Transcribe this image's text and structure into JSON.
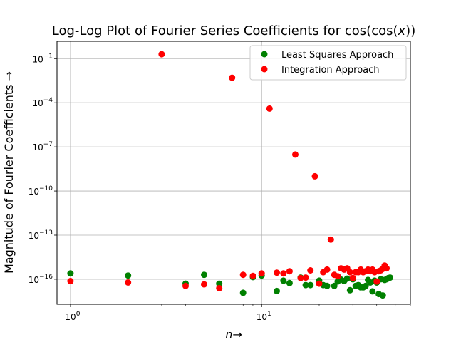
{
  "chart_data": {
    "type": "scatter",
    "title": "Log-Log Plot of Fourier Series Coefficients for cos(cos(x))",
    "xlabel": "n→",
    "ylabel": "Magnitude of Fourier Coefficients →",
    "xscale": "log",
    "yscale": "log",
    "xlim": [
      0.85,
      60
    ],
    "ylim": [
      2e-18,
      1.5
    ],
    "xticks": [
      {
        "value": 1,
        "label": "10^0"
      },
      {
        "value": 10,
        "label": "10^1"
      }
    ],
    "yticks": [
      {
        "value": 0.1,
        "label": "10^-1"
      },
      {
        "value": 0.0001,
        "label": "10^-4"
      },
      {
        "value": 1e-07,
        "label": "10^-7"
      },
      {
        "value": 1e-10,
        "label": "10^-10"
      },
      {
        "value": 1e-13,
        "label": "10^-13"
      },
      {
        "value": 1e-16,
        "label": "10^-16"
      }
    ],
    "grid": true,
    "legend_position": "top-right",
    "series": [
      {
        "name": "Least Squares Approach",
        "color": "#008000",
        "points": [
          [
            1,
            2.5e-16
          ],
          [
            2,
            1.8e-16
          ],
          [
            4,
            5e-17
          ],
          [
            5,
            2e-16
          ],
          [
            6,
            5e-17
          ],
          [
            8,
            1.2e-17
          ],
          [
            9,
            1.4e-16
          ],
          [
            10,
            1.8e-16
          ],
          [
            12,
            1.6e-17
          ],
          [
            13,
            8e-17
          ],
          [
            14,
            5.5e-17
          ],
          [
            16,
            1.3e-16
          ],
          [
            17,
            4e-17
          ],
          [
            18,
            4e-17
          ],
          [
            20,
            8e-17
          ],
          [
            21,
            4e-17
          ],
          [
            22,
            3.5e-17
          ],
          [
            24,
            3.5e-17
          ],
          [
            25,
            7e-17
          ],
          [
            26,
            9.5e-17
          ],
          [
            27,
            7.5e-17
          ],
          [
            28,
            1.1e-16
          ],
          [
            29,
            1.8e-17
          ],
          [
            30,
            1e-16
          ],
          [
            31,
            3.5e-17
          ],
          [
            32,
            4e-17
          ],
          [
            33,
            2.8e-17
          ],
          [
            34,
            2.8e-17
          ],
          [
            35,
            3.5e-17
          ],
          [
            36,
            9e-17
          ],
          [
            37,
            6e-17
          ],
          [
            38,
            1.5e-17
          ],
          [
            39,
            8e-17
          ],
          [
            40,
            6e-17
          ],
          [
            41,
            1e-17
          ],
          [
            42,
            1e-16
          ],
          [
            43,
            8e-18
          ],
          [
            44,
            9e-17
          ],
          [
            45,
            1e-16
          ],
          [
            46,
            1.2e-16
          ],
          [
            47,
            1.3e-16
          ]
        ]
      },
      {
        "name": "Integration Approach",
        "color": "#ff0000",
        "points": [
          [
            1,
            7.5e-17
          ],
          [
            2,
            6e-17
          ],
          [
            3,
            0.2
          ],
          [
            4,
            3.5e-17
          ],
          [
            5,
            4.5e-17
          ],
          [
            6,
            2.5e-17
          ],
          [
            7,
            0.005
          ],
          [
            8,
            2e-16
          ],
          [
            9,
            1.7e-16
          ],
          [
            10,
            2.5e-16
          ],
          [
            11,
            4e-05
          ],
          [
            12,
            2.8e-16
          ],
          [
            13,
            2.5e-16
          ],
          [
            14,
            3.5e-16
          ],
          [
            15,
            3e-08
          ],
          [
            16,
            1.2e-16
          ],
          [
            17,
            1.3e-16
          ],
          [
            18,
            4e-16
          ],
          [
            19,
            1e-09
          ],
          [
            20,
            5e-17
          ],
          [
            21,
            3e-16
          ],
          [
            22,
            4.5e-16
          ],
          [
            23,
            5e-14
          ],
          [
            24,
            2e-16
          ],
          [
            25,
            1.6e-16
          ],
          [
            26,
            5.5e-16
          ],
          [
            27,
            4.5e-16
          ],
          [
            28,
            5.5e-16
          ],
          [
            29,
            3e-16
          ],
          [
            30,
            1.2e-16
          ],
          [
            31,
            3e-16
          ],
          [
            32,
            3e-16
          ],
          [
            33,
            4.5e-16
          ],
          [
            34,
            3e-16
          ],
          [
            35,
            3.5e-16
          ],
          [
            36,
            4.5e-16
          ],
          [
            37,
            3.5e-16
          ],
          [
            38,
            4.5e-16
          ],
          [
            39,
            3e-16
          ],
          [
            40,
            7e-17
          ],
          [
            41,
            3.5e-16
          ],
          [
            42,
            4e-16
          ],
          [
            43,
            5e-16
          ],
          [
            44,
            8.5e-16
          ],
          [
            45,
            5.5e-16
          ]
        ]
      }
    ]
  }
}
